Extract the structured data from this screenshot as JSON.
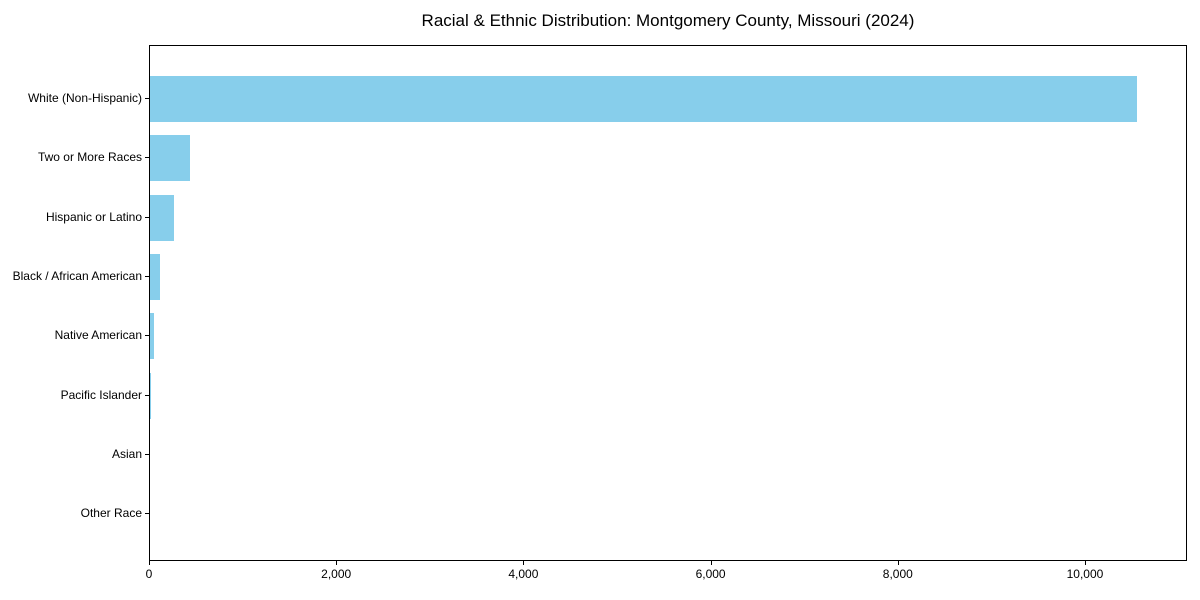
{
  "chart_data": {
    "type": "bar",
    "orientation": "horizontal",
    "title": "Racial & Ethnic Distribution: Montgomery County, Missouri (2024)",
    "categories": [
      "White (Non-Hispanic)",
      "Two or More Races",
      "Hispanic or Latino",
      "Black / African American",
      "Native American",
      "Pacific Islander",
      "Asian",
      "Other Race"
    ],
    "values": [
      10545,
      430,
      260,
      105,
      45,
      10,
      0,
      0
    ],
    "xlabel": "",
    "ylabel": "",
    "xlim": [
      0,
      11090
    ],
    "xticks": [
      0,
      2000,
      4000,
      6000,
      8000,
      10000
    ],
    "xtick_labels": [
      "0",
      "2,000",
      "4,000",
      "6,000",
      "8,000",
      "10,000"
    ],
    "bar_color": "#87CEEB",
    "axis_color": "#000000",
    "text_color": "#000000",
    "background": "#FFFFFF",
    "grid": false,
    "legend": null
  }
}
